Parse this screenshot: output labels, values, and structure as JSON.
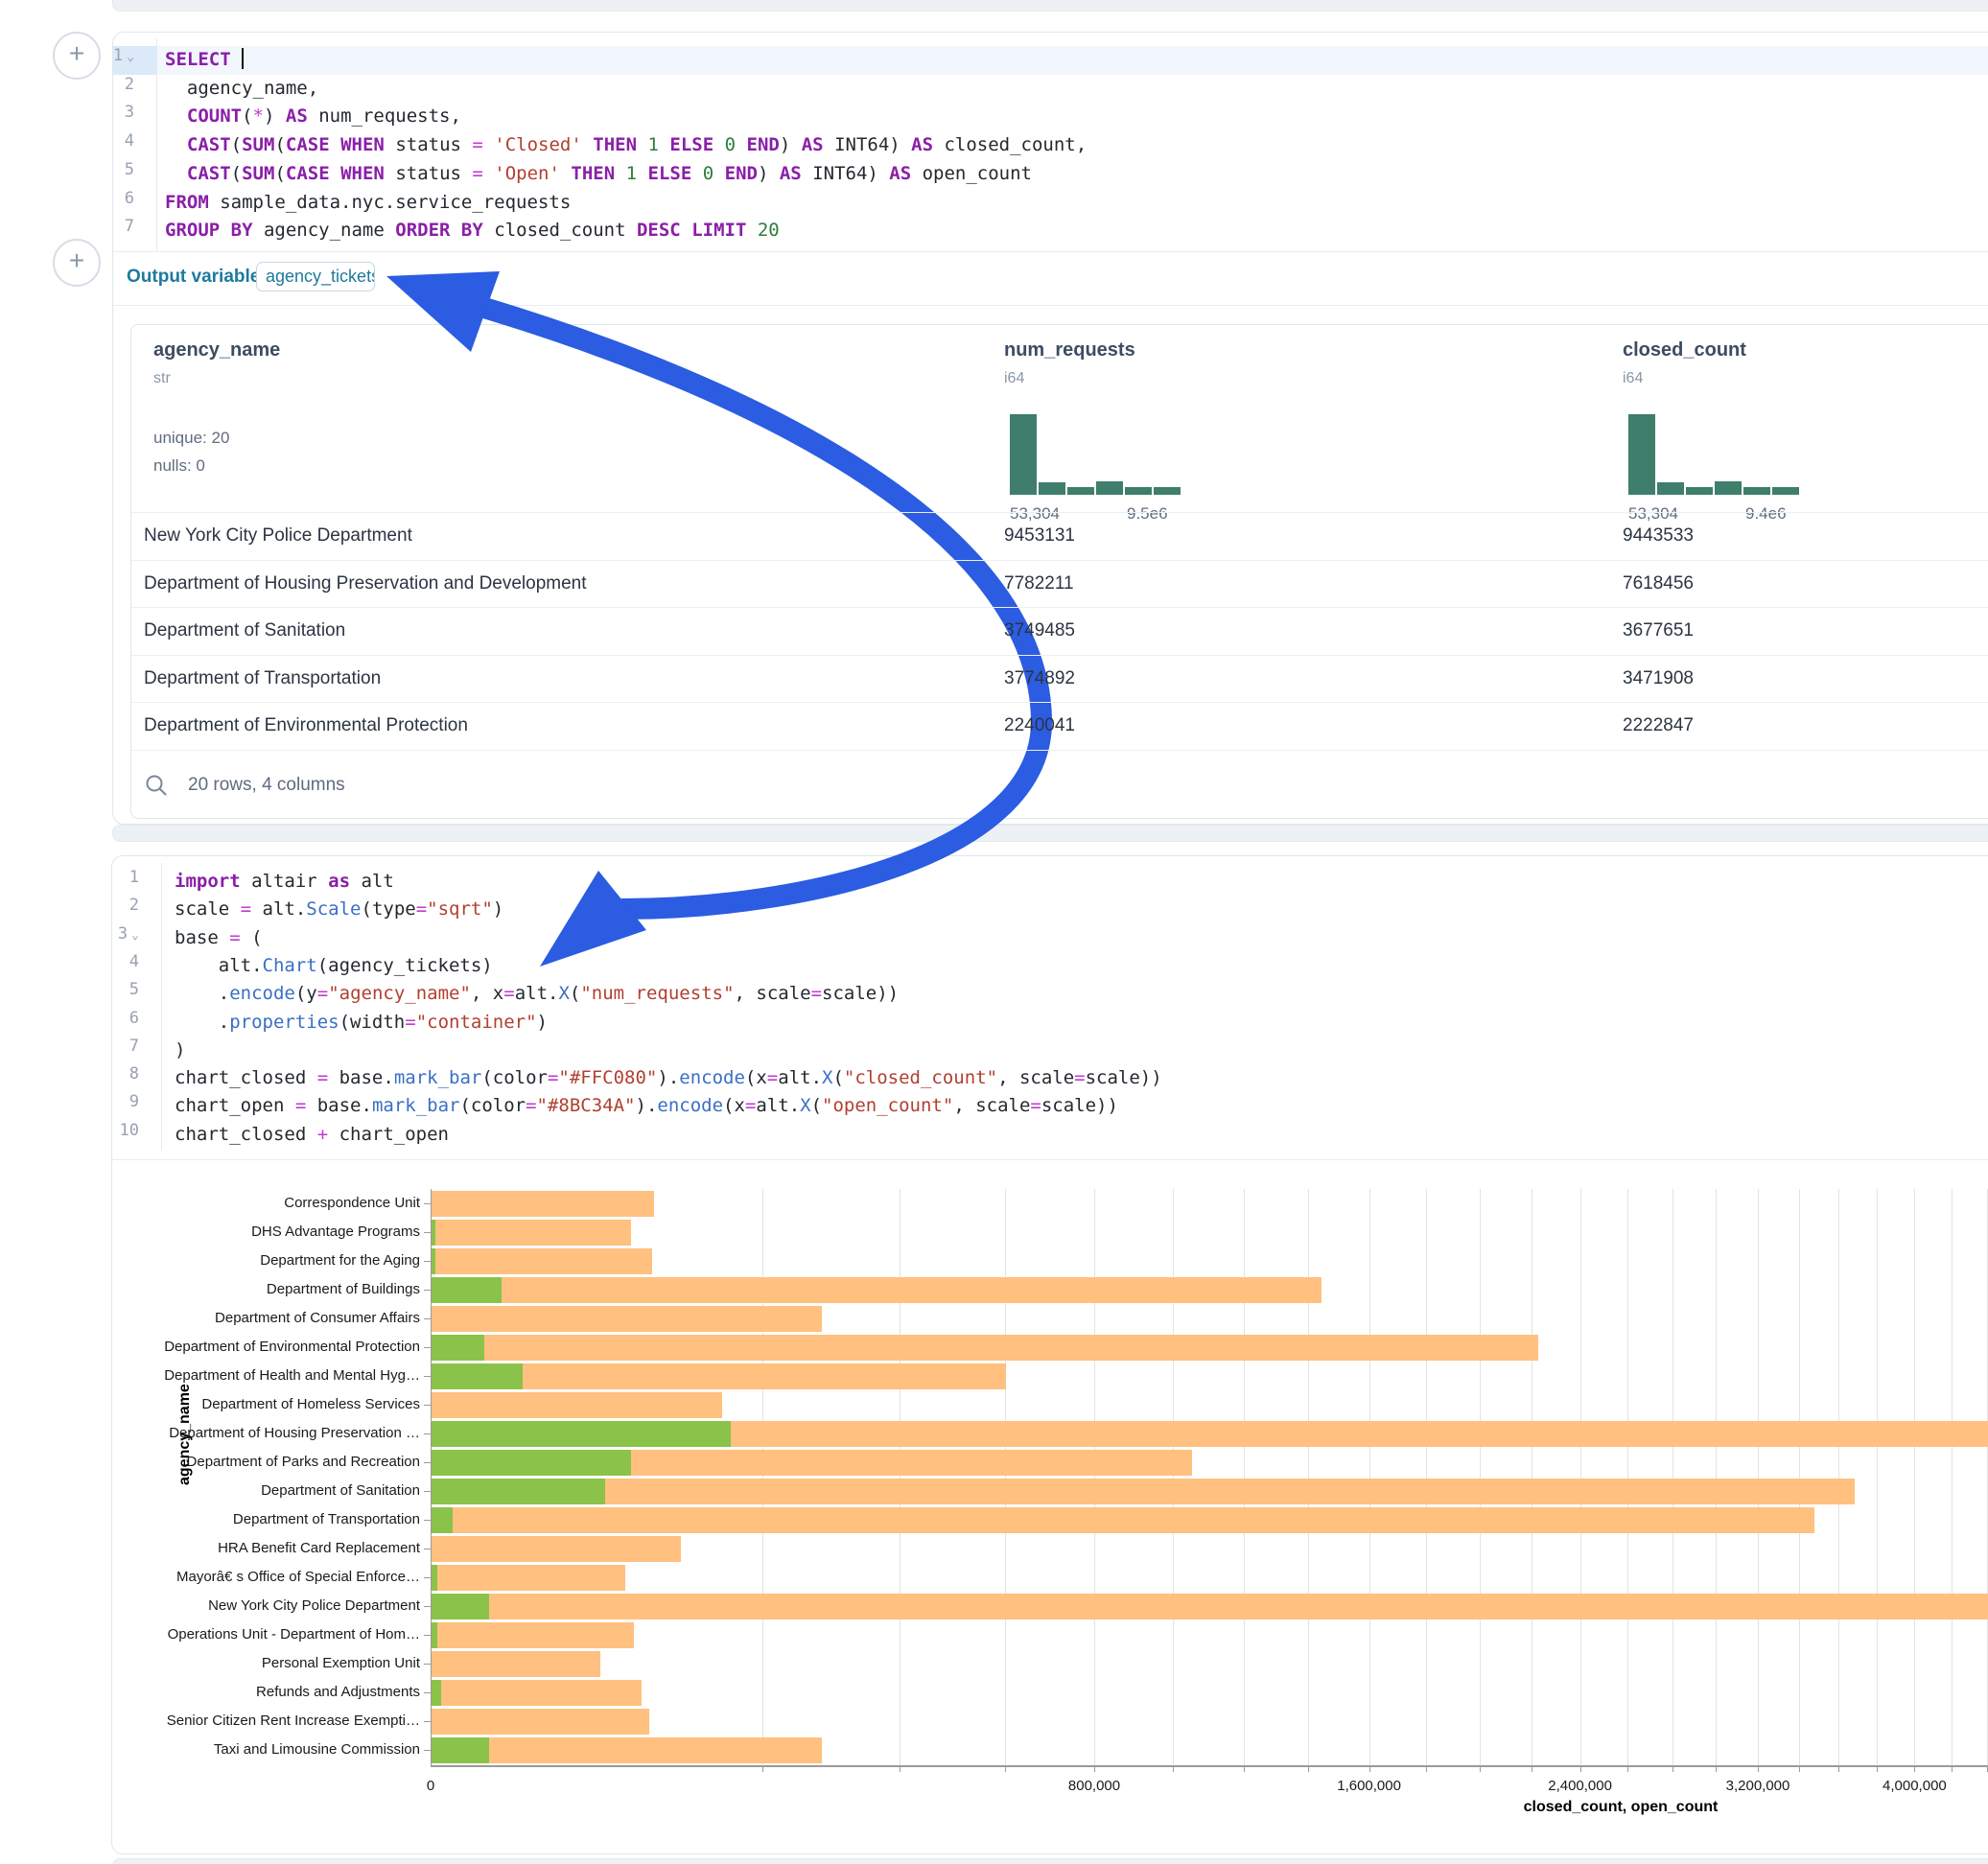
{
  "colors": {
    "keyword": "#8a1fa8",
    "function": "#3a6fc4",
    "string": "#b0402f",
    "number": "#2e7d3c",
    "operator": "#c13ad1",
    "code_default": "#24292f",
    "accent_teal": "#1d7a9c",
    "histogram": "#3e7e6b",
    "arrow_blue": "#2b5ce2",
    "bar_closed": "#FFC080",
    "bar_open": "#8BC34A"
  },
  "add_cell_button": {
    "glyph": "+"
  },
  "sql_cell": {
    "active_line": 1,
    "lines": [
      [
        [
          "k",
          "SELECT"
        ],
        [
          "d",
          " "
        ],
        [
          "caret",
          ""
        ]
      ],
      [
        [
          "d",
          "  agency_name,"
        ]
      ],
      [
        [
          "d",
          "  "
        ],
        [
          "k",
          "COUNT"
        ],
        [
          "d",
          "("
        ],
        [
          "o",
          "*"
        ],
        [
          "d",
          ") "
        ],
        [
          "k",
          "AS"
        ],
        [
          "d",
          " num_requests,"
        ]
      ],
      [
        [
          "d",
          "  "
        ],
        [
          "k",
          "CAST"
        ],
        [
          "d",
          "("
        ],
        [
          "k",
          "SUM"
        ],
        [
          "d",
          "("
        ],
        [
          "k",
          "CASE"
        ],
        [
          "d",
          " "
        ],
        [
          "k",
          "WHEN"
        ],
        [
          "d",
          " status "
        ],
        [
          "o",
          "="
        ],
        [
          "d",
          " "
        ],
        [
          "s",
          "'Closed'"
        ],
        [
          "d",
          " "
        ],
        [
          "k",
          "THEN"
        ],
        [
          "d",
          " "
        ],
        [
          "n",
          "1"
        ],
        [
          "d",
          " "
        ],
        [
          "k",
          "ELSE"
        ],
        [
          "d",
          " "
        ],
        [
          "n",
          "0"
        ],
        [
          "d",
          " "
        ],
        [
          "k",
          "END"
        ],
        [
          "d",
          ") "
        ],
        [
          "k",
          "AS"
        ],
        [
          "d",
          " INT64) "
        ],
        [
          "k",
          "AS"
        ],
        [
          "d",
          " closed_count,"
        ]
      ],
      [
        [
          "d",
          "  "
        ],
        [
          "k",
          "CAST"
        ],
        [
          "d",
          "("
        ],
        [
          "k",
          "SUM"
        ],
        [
          "d",
          "("
        ],
        [
          "k",
          "CASE"
        ],
        [
          "d",
          " "
        ],
        [
          "k",
          "WHEN"
        ],
        [
          "d",
          " status "
        ],
        [
          "o",
          "="
        ],
        [
          "d",
          " "
        ],
        [
          "s",
          "'Open'"
        ],
        [
          "d",
          " "
        ],
        [
          "k",
          "THEN"
        ],
        [
          "d",
          " "
        ],
        [
          "n",
          "1"
        ],
        [
          "d",
          " "
        ],
        [
          "k",
          "ELSE"
        ],
        [
          "d",
          " "
        ],
        [
          "n",
          "0"
        ],
        [
          "d",
          " "
        ],
        [
          "k",
          "END"
        ],
        [
          "d",
          ") "
        ],
        [
          "k",
          "AS"
        ],
        [
          "d",
          " INT64) "
        ],
        [
          "k",
          "AS"
        ],
        [
          "d",
          " open_count"
        ]
      ],
      [
        [
          "k",
          "FROM"
        ],
        [
          "d",
          " sample_data.nyc.service_requests"
        ]
      ],
      [
        [
          "k",
          "GROUP"
        ],
        [
          "d",
          " "
        ],
        [
          "k",
          "BY"
        ],
        [
          "d",
          " agency_name "
        ],
        [
          "k",
          "ORDER"
        ],
        [
          "d",
          " "
        ],
        [
          "k",
          "BY"
        ],
        [
          "d",
          " closed_count "
        ],
        [
          "k",
          "DESC"
        ],
        [
          "d",
          " "
        ],
        [
          "k",
          "LIMIT"
        ],
        [
          "d",
          " "
        ],
        [
          "n",
          "20"
        ]
      ]
    ]
  },
  "output_variable": {
    "label": "Output variable:",
    "value": "agency_tickets"
  },
  "table": {
    "columns": [
      {
        "name": "agency_name",
        "type": "str",
        "stats": [
          "unique: 20",
          "nulls: 0"
        ]
      },
      {
        "name": "num_requests",
        "type": "i64",
        "hist": [
          1.0,
          0.16,
          0.09,
          0.17,
          0.09,
          0.1
        ],
        "min_label": "53,304",
        "max_label": "9.5e6"
      },
      {
        "name": "closed_count",
        "type": "i64",
        "hist": [
          1.0,
          0.16,
          0.1,
          0.17,
          0.1,
          0.1
        ],
        "min_label": "53,304",
        "max_label": "9.4e6"
      }
    ],
    "rows": [
      [
        "New York City Police Department",
        "9453131",
        "9443533"
      ],
      [
        "Department of Housing Preservation and Development",
        "7782211",
        "7618456"
      ],
      [
        "Department of Sanitation",
        "3749485",
        "3677651"
      ],
      [
        "Department of Transportation",
        "3774892",
        "3471908"
      ],
      [
        "Department of Environmental Protection",
        "2240041",
        "2222847"
      ]
    ],
    "footer": "20 rows, 4 columns"
  },
  "python_cell": {
    "fold_line": 3,
    "lines": [
      [
        [
          "k",
          "import"
        ],
        [
          "d",
          " altair "
        ],
        [
          "k",
          "as"
        ],
        [
          "d",
          " alt"
        ]
      ],
      [
        [
          "d",
          "scale "
        ],
        [
          "o",
          "="
        ],
        [
          "d",
          " alt."
        ],
        [
          "f",
          "Scale"
        ],
        [
          "d",
          "(type"
        ],
        [
          "o",
          "="
        ],
        [
          "s",
          "\"sqrt\""
        ],
        [
          "d",
          ")"
        ]
      ],
      [
        [
          "d",
          "base "
        ],
        [
          "o",
          "="
        ],
        [
          "d",
          " ("
        ]
      ],
      [
        [
          "d",
          "    alt."
        ],
        [
          "f",
          "Chart"
        ],
        [
          "d",
          "(agency_tickets)"
        ]
      ],
      [
        [
          "d",
          "    ."
        ],
        [
          "f",
          "encode"
        ],
        [
          "d",
          "(y"
        ],
        [
          "o",
          "="
        ],
        [
          "s",
          "\"agency_name\""
        ],
        [
          "d",
          ", x"
        ],
        [
          "o",
          "="
        ],
        [
          "d",
          "alt."
        ],
        [
          "f",
          "X"
        ],
        [
          "d",
          "("
        ],
        [
          "s",
          "\"num_requests\""
        ],
        [
          "d",
          ", scale"
        ],
        [
          "o",
          "="
        ],
        [
          "d",
          "scale))"
        ]
      ],
      [
        [
          "d",
          "    ."
        ],
        [
          "f",
          "properties"
        ],
        [
          "d",
          "(width"
        ],
        [
          "o",
          "="
        ],
        [
          "s",
          "\"container\""
        ],
        [
          "d",
          ")"
        ]
      ],
      [
        [
          "d",
          ")"
        ]
      ],
      [
        [
          "d",
          "chart_closed "
        ],
        [
          "o",
          "="
        ],
        [
          "d",
          " base."
        ],
        [
          "f",
          "mark_bar"
        ],
        [
          "d",
          "(color"
        ],
        [
          "o",
          "="
        ],
        [
          "s",
          "\"#FFC080\""
        ],
        [
          "d",
          ")."
        ],
        [
          "f",
          "encode"
        ],
        [
          "d",
          "(x"
        ],
        [
          "o",
          "="
        ],
        [
          "d",
          "alt."
        ],
        [
          "f",
          "X"
        ],
        [
          "d",
          "("
        ],
        [
          "s",
          "\"closed_count\""
        ],
        [
          "d",
          ", scale"
        ],
        [
          "o",
          "="
        ],
        [
          "d",
          "scale))"
        ]
      ],
      [
        [
          "d",
          "chart_open "
        ],
        [
          "o",
          "="
        ],
        [
          "d",
          " base."
        ],
        [
          "f",
          "mark_bar"
        ],
        [
          "d",
          "(color"
        ],
        [
          "o",
          "="
        ],
        [
          "s",
          "\"#8BC34A\""
        ],
        [
          "d",
          ")."
        ],
        [
          "f",
          "encode"
        ],
        [
          "d",
          "(x"
        ],
        [
          "o",
          "="
        ],
        [
          "d",
          "alt."
        ],
        [
          "f",
          "X"
        ],
        [
          "d",
          "("
        ],
        [
          "s",
          "\"open_count\""
        ],
        [
          "d",
          ", scale"
        ],
        [
          "o",
          "="
        ],
        [
          "d",
          "scale))"
        ]
      ],
      [
        [
          "d",
          "chart_closed "
        ],
        [
          "o",
          "+"
        ],
        [
          "d",
          " chart_open"
        ]
      ]
    ]
  },
  "chart_data": {
    "type": "bar",
    "orientation": "horizontal",
    "x_scale": "sqrt",
    "xlabel": "closed_count, open_count",
    "ylabel": "agency_name",
    "grid": true,
    "gridline_step": 200000,
    "x_domain_visible_max": 4400000,
    "x_ticks": [
      {
        "value": 0,
        "label": "0"
      },
      {
        "value": 800000,
        "label": "800,000"
      },
      {
        "value": 1600000,
        "label": "1,600,000"
      },
      {
        "value": 2400000,
        "label": "2,400,000"
      },
      {
        "value": 3200000,
        "label": "3,200,000"
      },
      {
        "value": 4000000,
        "label": "4,000,000"
      }
    ],
    "categories": [
      "Correspondence Unit",
      "DHS Advantage Programs",
      "Department for the Aging",
      "Department of Buildings",
      "Department of Consumer Affairs",
      "Department of Environmental Protection",
      "Department of Health and Mental Hyg…",
      "Department of Homeless Services",
      "Department of Housing Preservation …",
      "Department of Parks and Recreation",
      "Department of Sanitation",
      "Department of Transportation",
      "HRA Benefit Card Replacement",
      "Mayorâ€ s Office of Special Enforce…",
      "New York City Police Department",
      "Operations Unit - Department of Hom…",
      "Personal Exemption Unit",
      "Refunds and Adjustments",
      "Senior Citizen Rent Increase Exempti…",
      "Taxi and Limousine Commission"
    ],
    "series": [
      {
        "name": "closed_count",
        "color": "#FFC080",
        "values": [
          90000,
          72000,
          88000,
          1440000,
          276000,
          2222847,
          600000,
          153000,
          7618456,
          1050000,
          3677651,
          3471908,
          113000,
          68000,
          9443533,
          74000,
          52000,
          80000,
          86000,
          276000
        ]
      },
      {
        "name": "open_count",
        "color": "#8BC34A",
        "values": [
          0,
          30,
          30,
          9000,
          0,
          5000,
          15000,
          0,
          163000,
          72000,
          55000,
          800,
          0,
          50,
          6000,
          50,
          0,
          150,
          0,
          6000
        ]
      }
    ]
  }
}
